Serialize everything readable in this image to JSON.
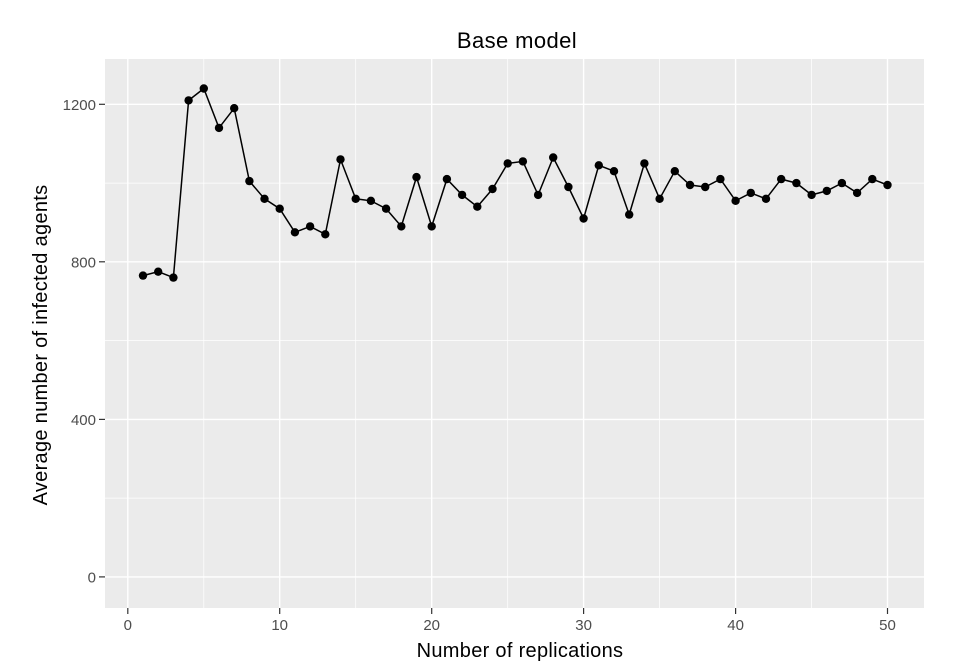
{
  "chart_data": {
    "type": "line",
    "title": "Base model",
    "xlabel": "Number of replications",
    "ylabel": "Average number of infected agents",
    "x": [
      1,
      2,
      3,
      4,
      5,
      6,
      7,
      8,
      9,
      10,
      11,
      12,
      13,
      14,
      15,
      16,
      17,
      18,
      19,
      20,
      21,
      22,
      23,
      24,
      25,
      26,
      27,
      28,
      29,
      30,
      31,
      32,
      33,
      34,
      35,
      36,
      37,
      38,
      39,
      40,
      41,
      42,
      43,
      44,
      45,
      46,
      47,
      48,
      49,
      50
    ],
    "series": [
      {
        "name": "Average number of infected agents",
        "values": [
          765,
          775,
          760,
          1210,
          1240,
          1140,
          1190,
          1005,
          960,
          935,
          875,
          890,
          870,
          1060,
          960,
          955,
          935,
          890,
          1015,
          890,
          1010,
          970,
          940,
          985,
          1050,
          1055,
          970,
          1065,
          990,
          910,
          1045,
          1030,
          920,
          1050,
          960,
          1030,
          995,
          990,
          1010,
          955,
          975,
          960,
          1010,
          1000,
          970,
          980,
          1000,
          975,
          1010,
          995
        ]
      }
    ],
    "x_ticks_major": [
      0,
      10,
      20,
      30,
      40,
      50
    ],
    "x_ticks_minor": [
      5,
      15,
      25,
      35,
      45
    ],
    "y_ticks_major": [
      0,
      400,
      800,
      1200
    ],
    "y_ticks_minor": [
      200,
      600,
      1000
    ],
    "xlim": [
      -1.5,
      52.4
    ],
    "ylim": [
      -79,
      1315
    ],
    "grid": "major+minor",
    "legend": "none",
    "marker": "point",
    "colors": {
      "panel_bg": "#EBEBEB",
      "grid": "#FFFFFF",
      "line": "#000000",
      "point": "#000000",
      "tick_label": "#4D4D4D",
      "tick_mark": "#333333",
      "title_text": "#000000",
      "plot_bg": "#FFFFFF"
    }
  }
}
